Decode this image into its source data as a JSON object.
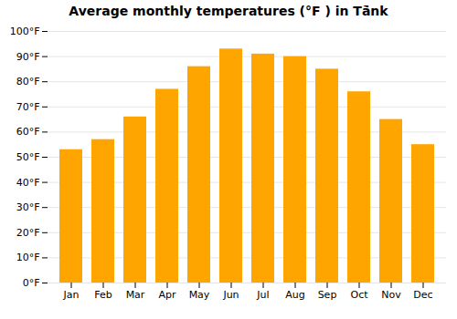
{
  "chart_data": {
    "type": "bar",
    "title": "Average monthly temperatures (°F ) in Tā̇nk",
    "categories": [
      "Jan",
      "Feb",
      "Mar",
      "Apr",
      "May",
      "Jun",
      "Jul",
      "Aug",
      "Sep",
      "Oct",
      "Nov",
      "Dec"
    ],
    "values": [
      53,
      57,
      66,
      77,
      86,
      93,
      91,
      90,
      85,
      76,
      65,
      55
    ],
    "color": "#FFA500",
    "ylim": [
      0,
      100
    ],
    "yticks": [
      {
        "value": 0,
        "label": "0°F"
      },
      {
        "value": 10,
        "label": "10°F"
      },
      {
        "value": 20,
        "label": "20°F"
      },
      {
        "value": 30,
        "label": "30°F"
      },
      {
        "value": 40,
        "label": "40°F"
      },
      {
        "value": 50,
        "label": "50°F"
      },
      {
        "value": 60,
        "label": "60°F"
      },
      {
        "value": 70,
        "label": "70°F"
      },
      {
        "value": 80,
        "label": "80°F"
      },
      {
        "value": 90,
        "label": "90°F"
      },
      {
        "value": 100,
        "label": "100°F"
      }
    ],
    "grid": true
  }
}
